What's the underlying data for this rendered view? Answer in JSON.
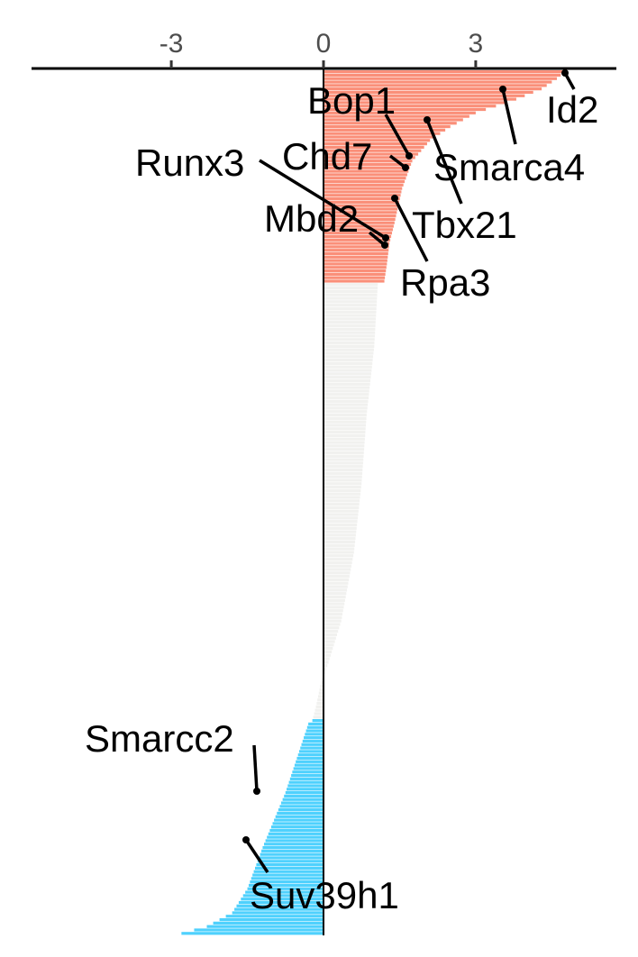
{
  "chart_data": {
    "type": "bar",
    "orientation": "horizontal",
    "x_axis_position": "top",
    "xlim": [
      -5.8,
      5.75
    ],
    "xticks": [
      {
        "value": -3,
        "label": "-3"
      },
      {
        "value": 0,
        "label": "0"
      },
      {
        "value": 3,
        "label": "3"
      }
    ],
    "grid": false,
    "colors": {
      "positive": "#fa8f79",
      "neutral": "#f1f1ef",
      "negative": "#4fd1fd",
      "zero_line": "#000000",
      "axis": "#000000",
      "leader": "#000000",
      "tick_text": "#4d4d4d"
    },
    "groups": {
      "positive_count": 62,
      "neutral_count": 127,
      "negative_count": 63
    },
    "profile_knots": [
      [
        0,
        4.75
      ],
      [
        2,
        4.6
      ],
      [
        5,
        4.3
      ],
      [
        8,
        3.8
      ],
      [
        12,
        3.0
      ],
      [
        16,
        2.5
      ],
      [
        20,
        2.1
      ],
      [
        26,
        1.75
      ],
      [
        34,
        1.55
      ],
      [
        44,
        1.4
      ],
      [
        50,
        1.3
      ],
      [
        56,
        1.25
      ],
      [
        61,
        1.2
      ],
      [
        62,
        1.07
      ],
      [
        80,
        1.0
      ],
      [
        100,
        0.85
      ],
      [
        120,
        0.75
      ],
      [
        140,
        0.6
      ],
      [
        160,
        0.35
      ],
      [
        172,
        0.1
      ],
      [
        178,
        -0.05
      ],
      [
        185,
        -0.15
      ],
      [
        189,
        -0.22
      ],
      [
        190,
        -0.3
      ],
      [
        210,
        -0.75
      ],
      [
        226,
        -1.2
      ],
      [
        238,
        -1.5
      ],
      [
        245,
        -1.8
      ],
      [
        249,
        -2.3
      ],
      [
        251,
        -2.8
      ],
      [
        252,
        -3.35
      ]
    ],
    "labeled_genes": [
      {
        "name": "Id2",
        "value": 4.6
      },
      {
        "name": "Smarca4",
        "value": 3.5
      },
      {
        "name": "Bop1",
        "value": 1.7
      },
      {
        "name": "Tbx21",
        "value": 2.0
      },
      {
        "name": "Chd7",
        "value": 1.6
      },
      {
        "name": "Runx3",
        "value": 1.2
      },
      {
        "name": "Mbd2",
        "value": 1.2
      },
      {
        "name": "Rpa3",
        "value": 1.4
      },
      {
        "name": "Smarcc2",
        "value": -1.3
      },
      {
        "name": "Suv39h1",
        "value": -1.5
      }
    ]
  }
}
